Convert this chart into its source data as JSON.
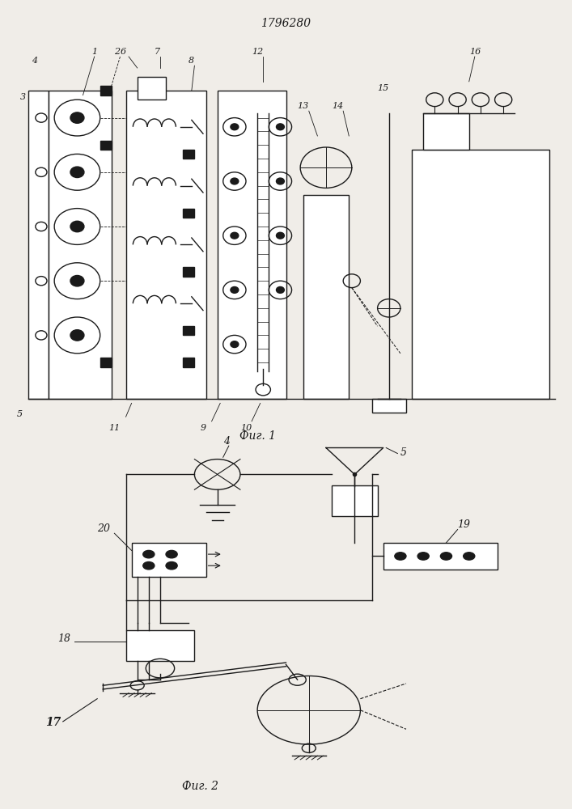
{
  "title": "1796280",
  "fig1_label": "Фиг. 1",
  "fig2_label": "Фиг. 2",
  "bg_color": "#f0ede8",
  "line_color": "#1a1a1a",
  "fig_width": 7.07,
  "fig_height": 10.0
}
